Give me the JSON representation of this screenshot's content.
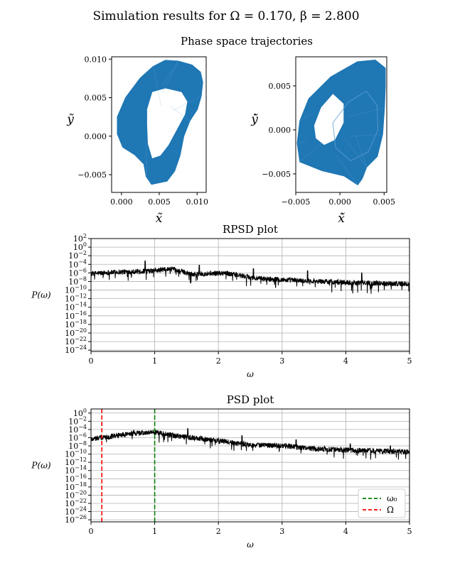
{
  "figure": {
    "suptitle": "Simulation results for Ω = 0.170, β = 2.800",
    "phase_title": "Phase space trajectories"
  },
  "chart_data": [
    {
      "type": "scatter",
      "name": "phase-left",
      "xlabel": "x̃",
      "ylabel": "ỹ",
      "xlim": [
        -0.0013,
        0.0112
      ],
      "ylim": [
        -0.0073,
        0.0103
      ],
      "xticks": [
        0.0,
        0.005,
        0.01
      ],
      "xtick_labels": [
        "0.000",
        "0.005",
        "0.010"
      ],
      "yticks": [
        -0.005,
        0.0,
        0.005,
        0.01
      ],
      "ytick_labels": [
        "−0.005",
        "0.000",
        "0.005",
        "0.010"
      ],
      "color": "#1f77b4",
      "outer": [
        [
          0.0058,
          0.0098
        ],
        [
          0.0075,
          0.0097
        ],
        [
          0.0093,
          0.0092
        ],
        [
          0.0104,
          0.0083
        ],
        [
          0.0107,
          0.007
        ],
        [
          0.0105,
          0.0052
        ],
        [
          0.01,
          0.0035
        ],
        [
          0.009,
          0.002
        ],
        [
          0.0082,
          0.0
        ],
        [
          0.0077,
          -0.0025
        ],
        [
          0.007,
          -0.0045
        ],
        [
          0.006,
          -0.0058
        ],
        [
          0.004,
          -0.0062
        ],
        [
          0.0033,
          -0.0052
        ],
        [
          0.003,
          -0.0036
        ],
        [
          0.0018,
          -0.0024
        ],
        [
          0.0002,
          -0.0014
        ],
        [
          -0.0005,
          0.0003
        ],
        [
          -0.0005,
          0.0025
        ],
        [
          0.0006,
          0.005
        ],
        [
          0.0025,
          0.0075
        ],
        [
          0.0042,
          0.009
        ]
      ],
      "hole": [
        [
          0.004,
          0.0058
        ],
        [
          0.0058,
          0.0063
        ],
        [
          0.008,
          0.0058
        ],
        [
          0.0088,
          0.0045
        ],
        [
          0.0085,
          0.0028
        ],
        [
          0.0074,
          0.0008
        ],
        [
          0.0063,
          -0.0012
        ],
        [
          0.0052,
          -0.0026
        ],
        [
          0.004,
          -0.003
        ],
        [
          0.0034,
          -0.001
        ],
        [
          0.0033,
          0.0015
        ],
        [
          0.0033,
          0.0035
        ]
      ]
    },
    {
      "type": "scatter",
      "name": "phase-right",
      "xlabel": "x̃̇",
      "ylabel": "ỹ̇",
      "xlim": [
        -0.005,
        0.0053
      ],
      "ylim": [
        -0.0071,
        0.0083
      ],
      "xticks": [
        -0.005,
        0.0,
        0.005
      ],
      "xtick_labels": [
        "−0.005",
        "0.000",
        "0.005"
      ],
      "yticks": [
        -0.005,
        0.0,
        0.005
      ],
      "ytick_labels": [
        "−0.005",
        "0.000",
        "0.005"
      ],
      "color": "#1f77b4",
      "outer": [
        [
          0.002,
          0.0077
        ],
        [
          0.004,
          0.0079
        ],
        [
          0.0051,
          0.007
        ],
        [
          0.0051,
          0.005
        ],
        [
          0.005,
          0.0025
        ],
        [
          0.0048,
          -0.0005
        ],
        [
          0.0042,
          -0.003
        ],
        [
          0.003,
          -0.0042
        ],
        [
          0.0025,
          -0.0055
        ],
        [
          0.002,
          -0.0062
        ],
        [
          0.0005,
          -0.0052
        ],
        [
          -0.002,
          -0.0046
        ],
        [
          -0.0045,
          -0.0036
        ],
        [
          -0.0048,
          -0.0015
        ],
        [
          -0.0045,
          0.001
        ],
        [
          -0.0035,
          0.0035
        ],
        [
          -0.001,
          0.006
        ]
      ],
      "hole": [
        [
          -0.003,
          0.0005
        ],
        [
          -0.0022,
          0.0026
        ],
        [
          -0.0008,
          0.0042
        ],
        [
          0.0005,
          0.003
        ],
        [
          0.0005,
          0.0008
        ],
        [
          -0.0005,
          -0.0012
        ],
        [
          -0.0018,
          -0.0018
        ],
        [
          -0.0028,
          -0.001
        ]
      ],
      "inner_loop": [
        [
          0.001,
          0.0032
        ],
        [
          0.003,
          0.0044
        ],
        [
          0.0042,
          0.0028
        ],
        [
          0.0043,
          0.0
        ],
        [
          0.0032,
          -0.0025
        ],
        [
          0.0012,
          -0.0035
        ],
        [
          -0.0005,
          -0.002
        ],
        [
          -0.0008,
          0.0008
        ]
      ]
    },
    {
      "type": "line",
      "name": "rpsd",
      "title": "RPSD plot",
      "xlabel": "ω",
      "ylabel": "P(ω)",
      "yscale": "log",
      "xlim": [
        0,
        5
      ],
      "ylim_exp": [
        -24.3,
        2.0
      ],
      "grid": true,
      "xticks": [
        0,
        1,
        2,
        3,
        4,
        5
      ],
      "yticks_exp": [
        -24,
        -22,
        -20,
        -18,
        -16,
        -14,
        -12,
        -10,
        -8,
        -6,
        -4,
        -2,
        0,
        2
      ],
      "trend_logP": {
        "x": [
          0.0,
          0.4,
          0.9,
          1.25,
          1.6,
          2.1,
          2.6,
          3.0,
          4.0,
          5.0
        ],
        "y": [
          -6.2,
          -5.8,
          -5.6,
          -5.1,
          -6.3,
          -6.0,
          -7.3,
          -7.6,
          -8.2,
          -8.6
        ]
      },
      "noise_amp_exp": 0.6,
      "peaks": [
        {
          "x": 0.85,
          "y_exp": -3.2
        },
        {
          "x": 1.7,
          "y_exp": -4.2
        },
        {
          "x": 2.55,
          "y_exp": -5.0
        },
        {
          "x": 3.4,
          "y_exp": -5.5
        },
        {
          "x": 4.25,
          "y_exp": -6.0
        }
      ],
      "color": "#000000"
    },
    {
      "type": "line",
      "name": "psd",
      "title": "PSD plot",
      "xlabel": "ω",
      "ylabel": "P(ω)",
      "yscale": "log",
      "xlim": [
        0,
        5
      ],
      "ylim_exp": [
        -26.5,
        1.0
      ],
      "grid": true,
      "xticks": [
        0,
        1,
        2,
        3,
        4,
        5
      ],
      "yticks_exp": [
        -26,
        -24,
        -22,
        -20,
        -18,
        -16,
        -14,
        -12,
        -10,
        -8,
        -6,
        -4,
        -2,
        0
      ],
      "trend_logP": {
        "x": [
          0.0,
          0.3,
          0.6,
          1.0,
          1.3,
          2.0,
          2.5,
          3.0,
          3.5,
          4.0,
          5.0
        ],
        "y": [
          -6.3,
          -5.7,
          -5.0,
          -4.7,
          -5.5,
          -6.7,
          -7.8,
          -7.9,
          -8.7,
          -9.0,
          -9.5
        ]
      },
      "noise_amp_exp": 0.65,
      "peaks": [
        {
          "x": 0.67,
          "y_exp": -4.2
        },
        {
          "x": 1.52,
          "y_exp": -3.8
        },
        {
          "x": 2.37,
          "y_exp": -5.5
        },
        {
          "x": 3.22,
          "y_exp": -6.5
        },
        {
          "x": 4.07,
          "y_exp": -7.5
        },
        {
          "x": 4.7,
          "y_exp": -8.0
        }
      ],
      "vlines": [
        {
          "x": 1.0,
          "label": "ω₀",
          "color": "#008000"
        },
        {
          "x": 0.17,
          "label": "Ω",
          "color": "#ff0000"
        }
      ],
      "legend_position": "lower-right",
      "color": "#000000"
    }
  ]
}
